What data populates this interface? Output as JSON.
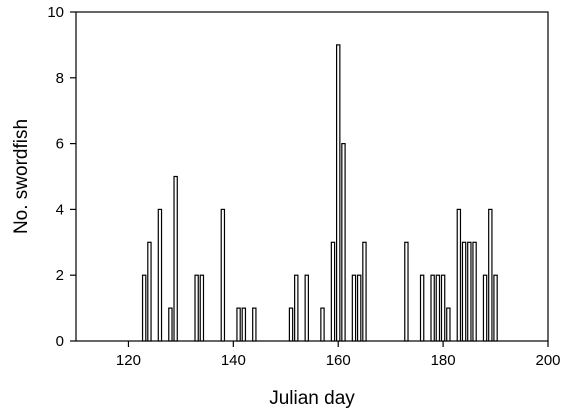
{
  "chart_data": {
    "type": "bar",
    "title": "",
    "xlabel": "Julian day",
    "ylabel": "No. swordfish",
    "xlim": [
      110,
      200
    ],
    "ylim": [
      0,
      10
    ],
    "xticks": [
      120,
      140,
      160,
      180,
      200
    ],
    "yticks": [
      0,
      2,
      4,
      6,
      8,
      10
    ],
    "grid": false,
    "series": [
      {
        "x": [
          123,
          124,
          126,
          128,
          129,
          133,
          134,
          138,
          141,
          142,
          144,
          151,
          152,
          154,
          157,
          159,
          160,
          161,
          163,
          164,
          165,
          173,
          176,
          178,
          179,
          180,
          181,
          183,
          184,
          185,
          186,
          188,
          189,
          190
        ],
        "values": [
          2,
          3,
          4,
          1,
          5,
          2,
          2,
          4,
          1,
          1,
          1,
          1,
          2,
          2,
          1,
          3,
          9,
          6,
          2,
          2,
          3,
          3,
          2,
          2,
          2,
          2,
          1,
          4,
          3,
          3,
          3,
          2,
          4,
          2
        ]
      }
    ]
  }
}
